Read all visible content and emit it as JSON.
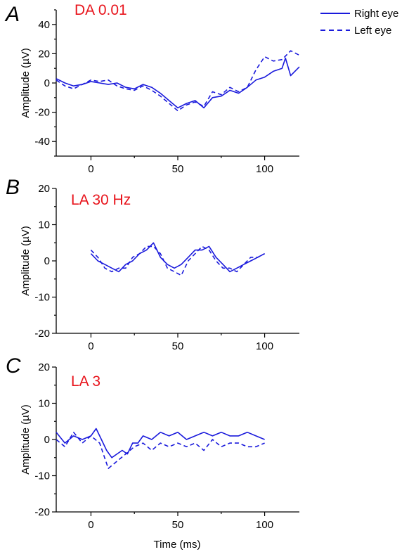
{
  "figure": {
    "xlabel": "Time (ms)",
    "legend": {
      "placement": "top-right",
      "entries": [
        {
          "label": "Right eye",
          "style": "solid"
        },
        {
          "label": "Left eye",
          "style": "dashed"
        }
      ]
    },
    "series_color": "#1a1adc",
    "condition_color": "#e8141c"
  },
  "chart_data": [
    {
      "type": "line",
      "panel": "A",
      "title": "DA 0.01",
      "ylabel": "Amplitude (µV)",
      "xlim": [
        -20,
        120
      ],
      "ylim": [
        -50,
        50
      ],
      "yticks": [
        -40,
        -20,
        0,
        20,
        40
      ],
      "xticks": [
        0,
        50,
        100
      ],
      "series": [
        {
          "name": "Right eye",
          "style": "solid",
          "x": [
            -20,
            -15,
            -10,
            -5,
            0,
            5,
            10,
            15,
            20,
            25,
            30,
            35,
            40,
            45,
            50,
            55,
            60,
            65,
            70,
            75,
            80,
            85,
            90,
            95,
            100,
            105,
            110,
            112,
            115,
            120
          ],
          "y": [
            3,
            0,
            -2,
            -1,
            1,
            0,
            -1,
            0,
            -3,
            -4,
            -1,
            -3,
            -7,
            -12,
            -17,
            -14,
            -12,
            -17,
            -10,
            -9,
            -5,
            -7,
            -3,
            2,
            4,
            8,
            10,
            17,
            5,
            11
          ]
        },
        {
          "name": "Left eye",
          "style": "dashed",
          "x": [
            -20,
            -15,
            -10,
            -5,
            0,
            5,
            10,
            15,
            20,
            25,
            30,
            35,
            40,
            45,
            50,
            55,
            60,
            65,
            70,
            75,
            80,
            85,
            90,
            95,
            100,
            105,
            110,
            115,
            120
          ],
          "y": [
            2,
            -2,
            -4,
            -1,
            2,
            1,
            2,
            -2,
            -4,
            -5,
            -2,
            -5,
            -9,
            -14,
            -19,
            -15,
            -13,
            -16,
            -6,
            -8,
            -3,
            -6,
            -3,
            9,
            18,
            15,
            16,
            22,
            19
          ]
        }
      ]
    },
    {
      "type": "line",
      "panel": "B",
      "title": "LA 30 Hz",
      "ylabel": "Amplitude (µV)",
      "xlim": [
        -20,
        120
      ],
      "ylim": [
        -20,
        20
      ],
      "yticks": [
        -20,
        -10,
        0,
        10,
        20
      ],
      "xticks": [
        0,
        50,
        100
      ],
      "series": [
        {
          "name": "Right eye",
          "style": "solid",
          "x": [
            0,
            4,
            8,
            12,
            16,
            20,
            24,
            28,
            32,
            36,
            40,
            44,
            48,
            52,
            56,
            60,
            64,
            68,
            72,
            76,
            80,
            84,
            88,
            92,
            96,
            100
          ],
          "y": [
            2,
            0,
            -1,
            -2,
            -3,
            -1,
            0,
            2,
            3,
            5,
            1,
            -1,
            -2,
            -1,
            1,
            3,
            3,
            4,
            1,
            -1,
            -3,
            -2,
            -1,
            0,
            1,
            2
          ]
        },
        {
          "name": "Left eye",
          "style": "dashed",
          "x": [
            0,
            4,
            8,
            12,
            16,
            20,
            24,
            28,
            32,
            36,
            40,
            44,
            48,
            52,
            56,
            60,
            64,
            68,
            72,
            76,
            80,
            84,
            88,
            92,
            96,
            100
          ],
          "y": [
            3,
            1,
            -2,
            -3,
            -2,
            -2,
            1,
            2,
            4,
            4,
            2,
            -2,
            -3,
            -4,
            0,
            2,
            4,
            3,
            0,
            -2,
            -2,
            -3,
            -1,
            1,
            1,
            2
          ]
        }
      ]
    },
    {
      "type": "line",
      "panel": "C",
      "title": "LA 3",
      "ylabel": "Amplitude (µV)",
      "xlim": [
        -20,
        120
      ],
      "ylim": [
        -20,
        20
      ],
      "yticks": [
        -20,
        -10,
        0,
        10,
        20
      ],
      "xticks": [
        0,
        50,
        100
      ],
      "series": [
        {
          "name": "Right eye",
          "style": "solid",
          "x": [
            -20,
            -15,
            -10,
            -5,
            0,
            3,
            6,
            9,
            12,
            15,
            18,
            21,
            24,
            27,
            30,
            35,
            40,
            45,
            50,
            55,
            60,
            65,
            70,
            75,
            80,
            85,
            90,
            95,
            100
          ],
          "y": [
            2,
            -1,
            1,
            0,
            1,
            3,
            0,
            -3,
            -5,
            -4,
            -3,
            -4,
            -1,
            -1,
            1,
            0,
            2,
            1,
            2,
            0,
            1,
            2,
            1,
            2,
            1,
            1,
            2,
            1,
            0
          ]
        },
        {
          "name": "Left eye",
          "style": "dashed",
          "x": [
            -20,
            -15,
            -10,
            -5,
            0,
            5,
            10,
            15,
            20,
            25,
            30,
            35,
            40,
            45,
            50,
            55,
            60,
            65,
            70,
            75,
            80,
            85,
            90,
            95,
            100
          ],
          "y": [
            0,
            -2,
            2,
            -1,
            1,
            -1,
            -8,
            -6,
            -4,
            -2,
            -1,
            -3,
            -1,
            -2,
            -1,
            -2,
            -1,
            -3,
            0,
            -2,
            -1,
            -1,
            -2,
            -2,
            -1
          ]
        }
      ]
    }
  ]
}
